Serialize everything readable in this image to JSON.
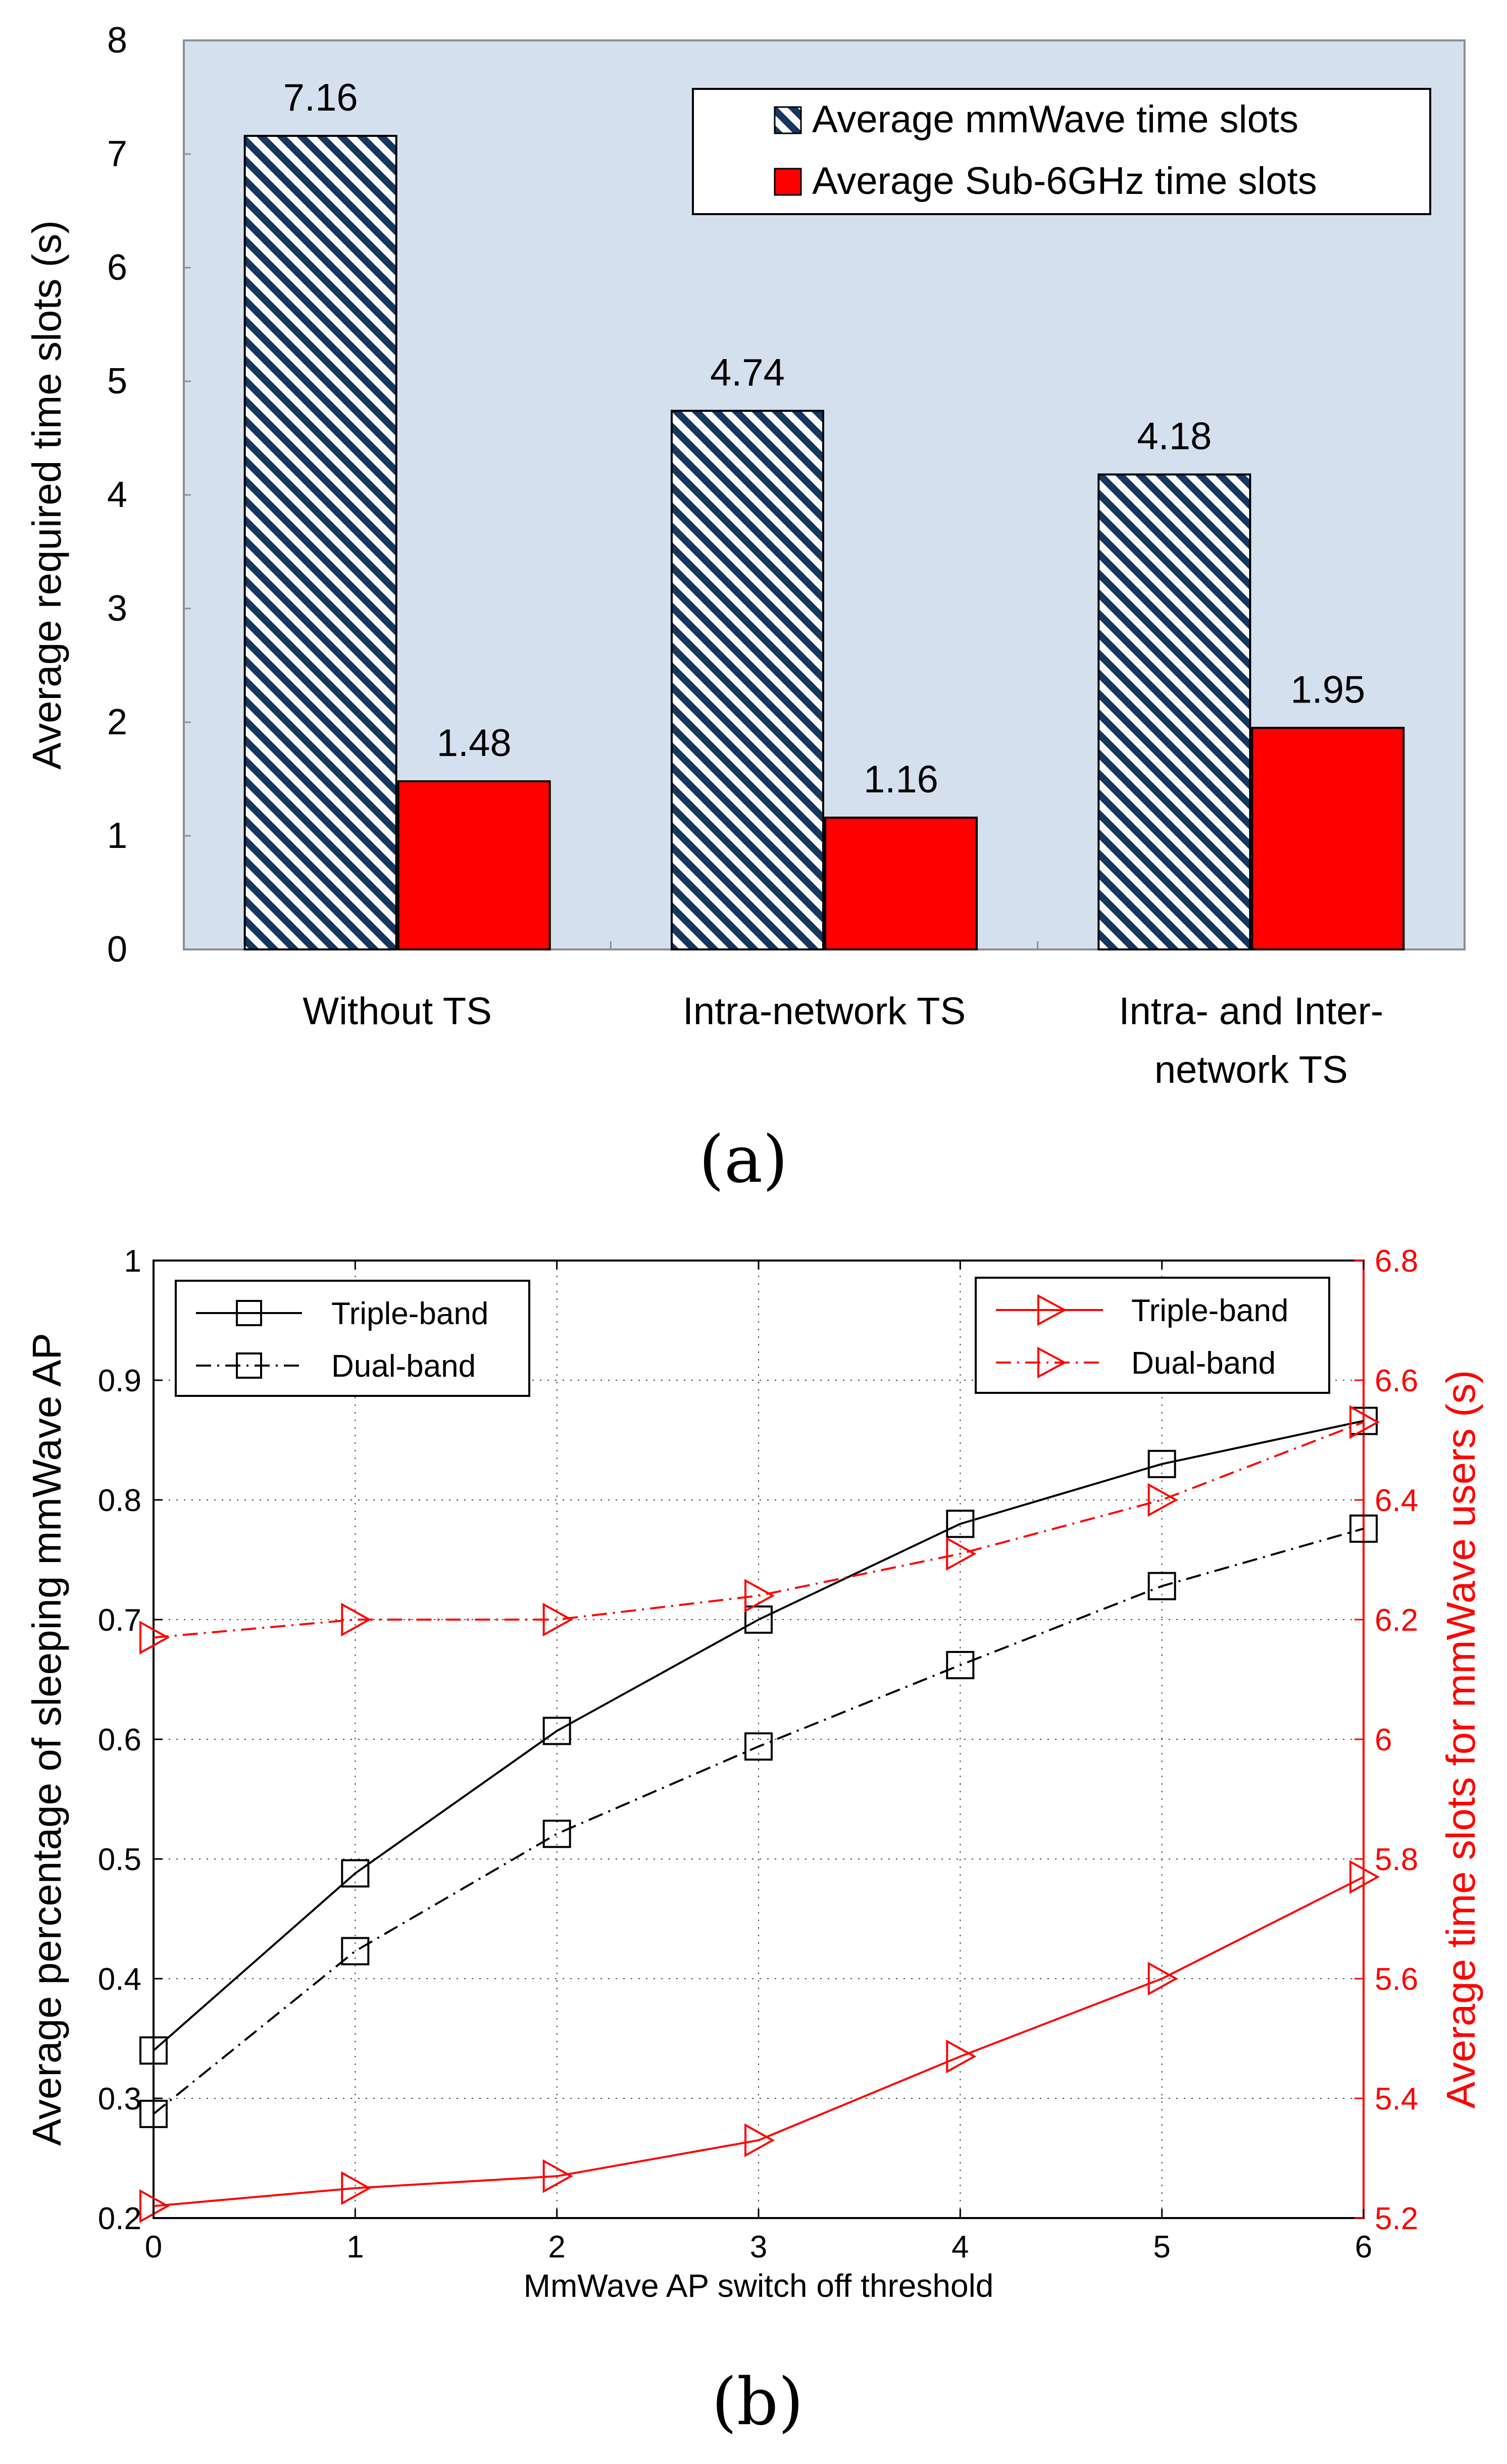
{
  "colors": {
    "plot_bg": "#d5e0ee",
    "sub6_red": "#ff0000",
    "hatch_blue": "#17375e",
    "line_black": "#000000",
    "line_red": "#ff0000"
  },
  "figure_a": {
    "caption": "(a)",
    "chart_data": {
      "type": "bar",
      "title": "",
      "xlabel": "",
      "ylabel": "Average required time slots (s)",
      "ylim": [
        0,
        8
      ],
      "yticks": [
        "0",
        "1",
        "2",
        "3",
        "4",
        "5",
        "6",
        "7",
        "8"
      ],
      "categories": [
        [
          "Without TS"
        ],
        [
          "Intra-network TS"
        ],
        [
          "Intra- and Inter-",
          "network TS"
        ]
      ],
      "series": [
        {
          "name": "Average mmWave time slots",
          "values": [
            7.16,
            4.74,
            4.18
          ],
          "labels": [
            "7.16",
            "4.74",
            "4.18"
          ],
          "fill": "hatch-blue"
        },
        {
          "name": "Average Sub-6GHz time slots",
          "values": [
            1.48,
            1.16,
            1.95
          ],
          "labels": [
            "1.48",
            "1.16",
            "1.95"
          ],
          "fill": "#ff0000"
        }
      ],
      "legend_position": "top-right"
    }
  },
  "figure_b": {
    "caption": "(b)",
    "chart_data": {
      "type": "line",
      "xlabel": "MmWave AP switch off threshold",
      "ylabel_left": "Average percentage of sleeping mmWave AP",
      "ylabel_right": "Average time slots for mmWave users (s)",
      "x": [
        0,
        1,
        2,
        3,
        4,
        5,
        6
      ],
      "xticks": [
        "0",
        "1",
        "2",
        "3",
        "4",
        "5",
        "6"
      ],
      "xlim": [
        0,
        6
      ],
      "ylim_left": [
        0.2,
        1.0
      ],
      "yticks_left": [
        "0.2",
        "0.3",
        "0.4",
        "0.5",
        "0.6",
        "0.7",
        "0.8",
        "0.9",
        "1"
      ],
      "ylim_right": [
        5.2,
        6.8
      ],
      "yticks_right": [
        "5.2",
        "5.4",
        "5.6",
        "5.8",
        "6",
        "6.2",
        "6.4",
        "6.6",
        "6.8"
      ],
      "grid": true,
      "series": [
        {
          "name": "Triple-band",
          "axis": "left",
          "marker": "square",
          "dash": "solid",
          "color": "#000000",
          "values": [
            0.34,
            0.488,
            0.607,
            0.7,
            0.78,
            0.83,
            0.866
          ]
        },
        {
          "name": "Dual-band",
          "axis": "left",
          "marker": "square",
          "dash": "dash-dot",
          "color": "#000000",
          "values": [
            0.287,
            0.423,
            0.521,
            0.594,
            0.662,
            0.728,
            0.776
          ]
        },
        {
          "name": "Triple-band",
          "axis": "right",
          "marker": "triangle-right",
          "dash": "solid",
          "color": "#ff0000",
          "values": [
            5.22,
            5.25,
            5.27,
            5.33,
            5.47,
            5.6,
            5.77
          ]
        },
        {
          "name": "Dual-band",
          "axis": "right",
          "marker": "triangle-right",
          "dash": "dash-dot",
          "color": "#ff0000",
          "values": [
            6.17,
            6.2,
            6.2,
            6.24,
            6.31,
            6.4,
            6.53
          ]
        }
      ],
      "legend_left_position": "top-left",
      "legend_right_position": "top-right"
    }
  }
}
